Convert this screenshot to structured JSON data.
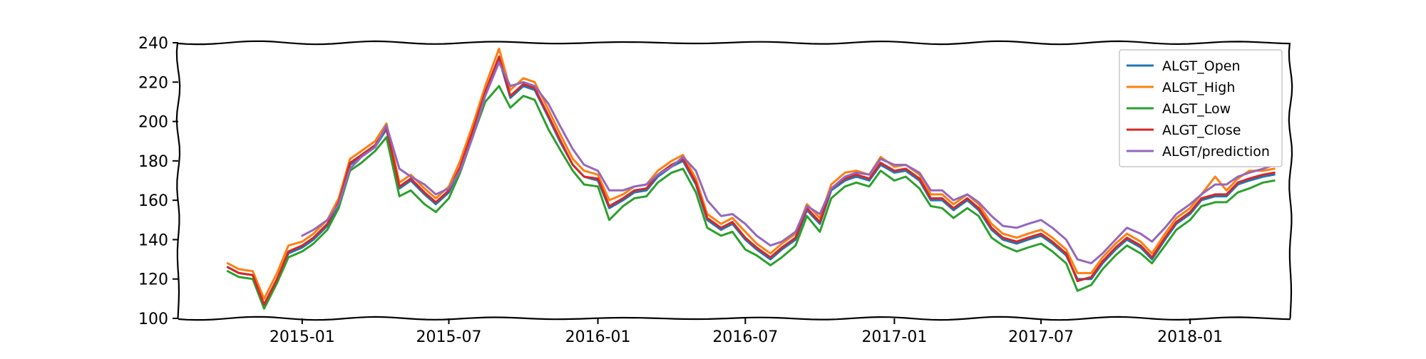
{
  "chart_data": {
    "type": "line",
    "title": "",
    "xlabel": "",
    "ylabel": "",
    "ylim": [
      100,
      240
    ],
    "xlim": [
      "2014-08-01",
      "2018-05-05"
    ],
    "yticks": [
      100,
      120,
      140,
      160,
      180,
      200,
      220,
      240
    ],
    "xticks": [
      {
        "date": "2015-01-01",
        "label": "2015-01"
      },
      {
        "date": "2015-07-01",
        "label": "2015-07"
      },
      {
        "date": "2016-01-01",
        "label": "2016-01"
      },
      {
        "date": "2016-07-01",
        "label": "2016-07"
      },
      {
        "date": "2017-01-01",
        "label": "2017-01"
      },
      {
        "date": "2017-07-01",
        "label": "2017-07"
      },
      {
        "date": "2018-01-01",
        "label": "2018-01"
      }
    ],
    "grid": false,
    "legend_position": "top-right",
    "style": "xkcd",
    "dates": [
      "2014-10-01",
      "2014-10-15",
      "2014-11-01",
      "2014-11-15",
      "2014-12-01",
      "2014-12-15",
      "2015-01-01",
      "2015-01-15",
      "2015-02-01",
      "2015-02-15",
      "2015-03-01",
      "2015-03-15",
      "2015-04-01",
      "2015-04-15",
      "2015-05-01",
      "2015-05-15",
      "2015-06-01",
      "2015-06-15",
      "2015-07-01",
      "2015-07-15",
      "2015-08-01",
      "2015-08-15",
      "2015-09-01",
      "2015-09-15",
      "2015-10-01",
      "2015-10-15",
      "2015-11-01",
      "2015-11-15",
      "2015-12-01",
      "2015-12-15",
      "2016-01-01",
      "2016-01-15",
      "2016-02-01",
      "2016-02-15",
      "2016-03-01",
      "2016-03-15",
      "2016-04-01",
      "2016-04-15",
      "2016-05-01",
      "2016-05-15",
      "2016-06-01",
      "2016-06-15",
      "2016-07-01",
      "2016-07-15",
      "2016-08-01",
      "2016-08-15",
      "2016-09-01",
      "2016-09-15",
      "2016-10-01",
      "2016-10-15",
      "2016-11-01",
      "2016-11-15",
      "2016-12-01",
      "2016-12-15",
      "2017-01-01",
      "2017-01-15",
      "2017-02-01",
      "2017-02-15",
      "2017-03-01",
      "2017-03-15",
      "2017-04-01",
      "2017-04-15",
      "2017-05-01",
      "2017-05-15",
      "2017-06-01",
      "2017-06-15",
      "2017-07-01",
      "2017-07-15",
      "2017-08-01",
      "2017-08-15",
      "2017-09-01",
      "2017-09-15",
      "2017-10-01",
      "2017-10-15",
      "2017-11-01",
      "2017-11-15",
      "2017-12-01",
      "2017-12-15",
      "2018-01-01",
      "2018-01-15",
      "2018-02-01",
      "2018-02-15",
      "2018-03-01",
      "2018-03-15",
      "2018-04-01",
      "2018-04-15"
    ],
    "series": [
      {
        "name": "ALGT_Open",
        "color": "#1f77b4",
        "values": [
          126,
          123,
          122,
          107,
          120,
          133,
          136,
          140,
          147,
          158,
          178,
          182,
          187,
          196,
          166,
          170,
          163,
          158,
          164,
          176,
          196,
          214,
          232,
          212,
          218,
          216,
          202,
          190,
          178,
          172,
          170,
          156,
          160,
          164,
          165,
          172,
          177,
          180,
          168,
          150,
          145,
          148,
          140,
          135,
          130,
          135,
          140,
          155,
          148,
          165,
          170,
          172,
          170,
          178,
          174,
          175,
          170,
          160,
          160,
          155,
          160,
          155,
          145,
          140,
          138,
          140,
          142,
          138,
          132,
          120,
          120,
          128,
          135,
          140,
          136,
          130,
          140,
          148,
          153,
          160,
          162,
          162,
          168,
          170,
          172,
          173
        ]
      },
      {
        "name": "ALGT_High",
        "color": "#ff7f0e",
        "values": [
          128,
          125,
          124,
          110,
          123,
          137,
          139,
          143,
          150,
          161,
          181,
          185,
          190,
          199,
          169,
          173,
          166,
          161,
          167,
          180,
          200,
          218,
          237,
          216,
          222,
          220,
          206,
          194,
          181,
          175,
          173,
          160,
          163,
          167,
          168,
          175,
          180,
          183,
          171,
          153,
          148,
          151,
          144,
          138,
          133,
          138,
          143,
          158,
          151,
          168,
          174,
          175,
          173,
          182,
          177,
          178,
          173,
          163,
          163,
          158,
          163,
          158,
          148,
          143,
          141,
          143,
          145,
          141,
          135,
          123,
          123,
          131,
          138,
          143,
          139,
          133,
          143,
          151,
          156,
          163,
          172,
          165,
          171,
          175,
          175,
          176
        ]
      },
      {
        "name": "ALGT_Low",
        "color": "#2ca02c",
        "values": [
          124,
          121,
          120,
          105,
          118,
          131,
          134,
          138,
          145,
          156,
          175,
          179,
          185,
          192,
          162,
          165,
          158,
          154,
          161,
          174,
          194,
          210,
          218,
          207,
          213,
          211,
          196,
          186,
          175,
          168,
          167,
          150,
          157,
          161,
          162,
          169,
          174,
          176,
          164,
          146,
          142,
          144,
          135,
          132,
          127,
          131,
          137,
          152,
          144,
          161,
          167,
          169,
          167,
          175,
          170,
          172,
          166,
          157,
          156,
          151,
          156,
          152,
          141,
          137,
          134,
          136,
          138,
          134,
          128,
          114,
          117,
          125,
          132,
          137,
          133,
          128,
          137,
          145,
          150,
          157,
          159,
          159,
          164,
          166,
          169,
          170
        ]
      },
      {
        "name": "ALGT_Close",
        "color": "#d62728",
        "values": [
          126,
          123,
          122,
          107,
          120,
          134,
          137,
          141,
          148,
          159,
          179,
          183,
          188,
          197,
          167,
          171,
          164,
          159,
          165,
          177,
          197,
          215,
          233,
          213,
          219,
          217,
          203,
          191,
          178,
          172,
          171,
          157,
          161,
          165,
          166,
          173,
          178,
          181,
          169,
          151,
          146,
          149,
          141,
          136,
          131,
          136,
          141,
          156,
          149,
          166,
          171,
          173,
          171,
          179,
          175,
          176,
          171,
          161,
          161,
          156,
          161,
          156,
          146,
          141,
          139,
          141,
          143,
          139,
          133,
          119,
          121,
          129,
          136,
          141,
          137,
          131,
          141,
          149,
          154,
          161,
          163,
          163,
          169,
          171,
          173,
          174
        ]
      },
      {
        "name": "ALGT/prediction",
        "color": "#9467bd",
        "values": [
          null,
          null,
          null,
          null,
          null,
          null,
          142,
          145,
          150,
          158,
          176,
          182,
          187,
          198,
          176,
          172,
          168,
          163,
          166,
          175,
          194,
          213,
          230,
          218,
          220,
          218,
          209,
          198,
          186,
          178,
          175,
          165,
          165,
          167,
          168,
          173,
          177,
          182,
          175,
          160,
          152,
          153,
          148,
          142,
          137,
          139,
          144,
          157,
          153,
          166,
          172,
          174,
          173,
          181,
          178,
          178,
          174,
          165,
          165,
          160,
          163,
          159,
          152,
          147,
          146,
          148,
          150,
          146,
          140,
          130,
          128,
          133,
          140,
          146,
          143,
          139,
          146,
          153,
          158,
          163,
          168,
          168,
          172,
          174,
          176,
          178
        ]
      }
    ]
  }
}
